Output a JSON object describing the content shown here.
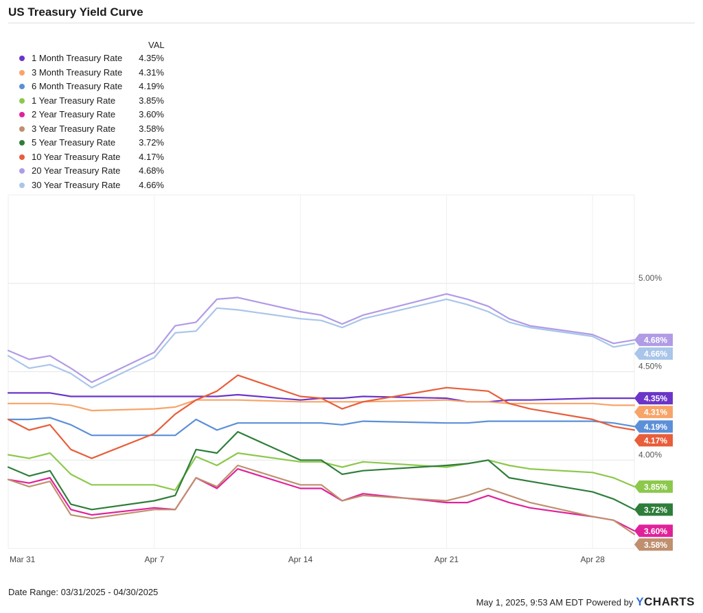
{
  "header": {
    "title": "US Treasury Yield Curve"
  },
  "legend": {
    "column_header": "VAL"
  },
  "footer": {
    "date_range": "Date Range: 03/31/2025 - 04/30/2025",
    "timestamp": "May 1, 2025, 9:53 AM EDT",
    "powered_by": "Powered by",
    "brand": "YCHARTS"
  },
  "chart_data": {
    "type": "line",
    "title": "US Treasury Yield Curve",
    "xlabel": "",
    "ylabel": "",
    "x_tick_labels": [
      "Mar 31",
      "Apr 7",
      "Apr 14",
      "Apr 21",
      "Apr 28"
    ],
    "y_tick_labels": [
      "4.00%",
      "4.50%",
      "5.00%"
    ],
    "y_ticks": [
      4.0,
      4.5,
      5.0
    ],
    "ylim": [
      3.5,
      5.5
    ],
    "grid": true,
    "x": [
      "2025-03-31",
      "2025-04-01",
      "2025-04-02",
      "2025-04-03",
      "2025-04-04",
      "2025-04-07",
      "2025-04-08",
      "2025-04-09",
      "2025-04-10",
      "2025-04-11",
      "2025-04-14",
      "2025-04-15",
      "2025-04-16",
      "2025-04-17",
      "2025-04-21",
      "2025-04-22",
      "2025-04-23",
      "2025-04-24",
      "2025-04-25",
      "2025-04-28",
      "2025-04-29",
      "2025-04-30"
    ],
    "x_day_index": [
      0,
      1,
      2,
      3,
      4,
      7,
      8,
      9,
      10,
      11,
      14,
      15,
      16,
      17,
      21,
      22,
      23,
      24,
      25,
      28,
      29,
      30
    ],
    "series": [
      {
        "name": "1 Month Treasury Rate",
        "label": "4.35%",
        "color": "#6a35c8",
        "values": [
          4.38,
          4.38,
          4.38,
          4.36,
          4.36,
          4.36,
          4.36,
          4.36,
          4.36,
          4.37,
          4.34,
          4.35,
          4.35,
          4.36,
          4.35,
          4.33,
          4.33,
          4.34,
          4.34,
          4.35,
          4.35,
          4.35
        ]
      },
      {
        "name": "3 Month Treasury Rate",
        "label": "4.31%",
        "color": "#f7a469",
        "values": [
          4.32,
          4.32,
          4.32,
          4.31,
          4.28,
          4.29,
          4.3,
          4.34,
          4.34,
          4.34,
          4.33,
          4.33,
          4.33,
          4.33,
          4.34,
          4.33,
          4.33,
          4.32,
          4.32,
          4.32,
          4.31,
          4.31
        ]
      },
      {
        "name": "6 Month Treasury Rate",
        "label": "4.19%",
        "color": "#5b8fd8",
        "values": [
          4.23,
          4.23,
          4.24,
          4.2,
          4.14,
          4.14,
          4.14,
          4.23,
          4.17,
          4.21,
          4.21,
          4.21,
          4.2,
          4.22,
          4.21,
          4.21,
          4.22,
          4.22,
          4.22,
          4.22,
          4.21,
          4.19
        ]
      },
      {
        "name": "1 Year Treasury Rate",
        "label": "3.85%",
        "color": "#8cc84b",
        "values": [
          4.03,
          4.01,
          4.04,
          3.92,
          3.86,
          3.86,
          3.83,
          4.02,
          3.97,
          4.04,
          3.99,
          3.99,
          3.96,
          3.99,
          3.96,
          3.98,
          4.0,
          3.97,
          3.95,
          3.93,
          3.9,
          3.85
        ]
      },
      {
        "name": "2 Year Treasury Rate",
        "label": "3.60%",
        "color": "#e0229a",
        "values": [
          3.89,
          3.87,
          3.9,
          3.72,
          3.69,
          3.73,
          3.72,
          3.9,
          3.84,
          3.95,
          3.84,
          3.84,
          3.77,
          3.81,
          3.76,
          3.76,
          3.8,
          3.76,
          3.73,
          3.68,
          3.66,
          3.6
        ]
      },
      {
        "name": "3 Year Treasury Rate",
        "label": "3.58%",
        "color": "#bf8f6e",
        "values": [
          3.89,
          3.85,
          3.88,
          3.69,
          3.67,
          3.72,
          3.72,
          3.9,
          3.85,
          3.97,
          3.86,
          3.86,
          3.77,
          3.8,
          3.77,
          3.8,
          3.84,
          3.8,
          3.76,
          3.68,
          3.66,
          3.58
        ]
      },
      {
        "name": "5 Year Treasury Rate",
        "label": "3.72%",
        "color": "#2e7d3a",
        "values": [
          3.96,
          3.91,
          3.94,
          3.75,
          3.72,
          3.77,
          3.8,
          4.06,
          4.04,
          4.16,
          4.0,
          4.0,
          3.92,
          3.94,
          3.97,
          3.98,
          4.0,
          3.9,
          3.88,
          3.82,
          3.78,
          3.72
        ]
      },
      {
        "name": "10 Year Treasury Rate",
        "label": "4.17%",
        "color": "#e85d3a",
        "values": [
          4.23,
          4.17,
          4.2,
          4.06,
          4.01,
          4.15,
          4.26,
          4.34,
          4.39,
          4.48,
          4.36,
          4.35,
          4.29,
          4.33,
          4.41,
          4.4,
          4.39,
          4.32,
          4.29,
          4.23,
          4.19,
          4.17
        ]
      },
      {
        "name": "20 Year Treasury Rate",
        "label": "4.68%",
        "color": "#b09be6",
        "values": [
          4.62,
          4.57,
          4.59,
          4.52,
          4.44,
          4.61,
          4.76,
          4.78,
          4.91,
          4.92,
          4.84,
          4.82,
          4.77,
          4.82,
          4.94,
          4.91,
          4.87,
          4.8,
          4.76,
          4.71,
          4.66,
          4.68
        ]
      },
      {
        "name": "30 Year Treasury Rate",
        "label": "4.66%",
        "color": "#a9c5ea",
        "values": [
          4.59,
          4.52,
          4.54,
          4.49,
          4.41,
          4.58,
          4.72,
          4.73,
          4.86,
          4.85,
          4.8,
          4.79,
          4.75,
          4.8,
          4.91,
          4.88,
          4.84,
          4.78,
          4.75,
          4.7,
          4.64,
          4.66
        ]
      }
    ]
  }
}
